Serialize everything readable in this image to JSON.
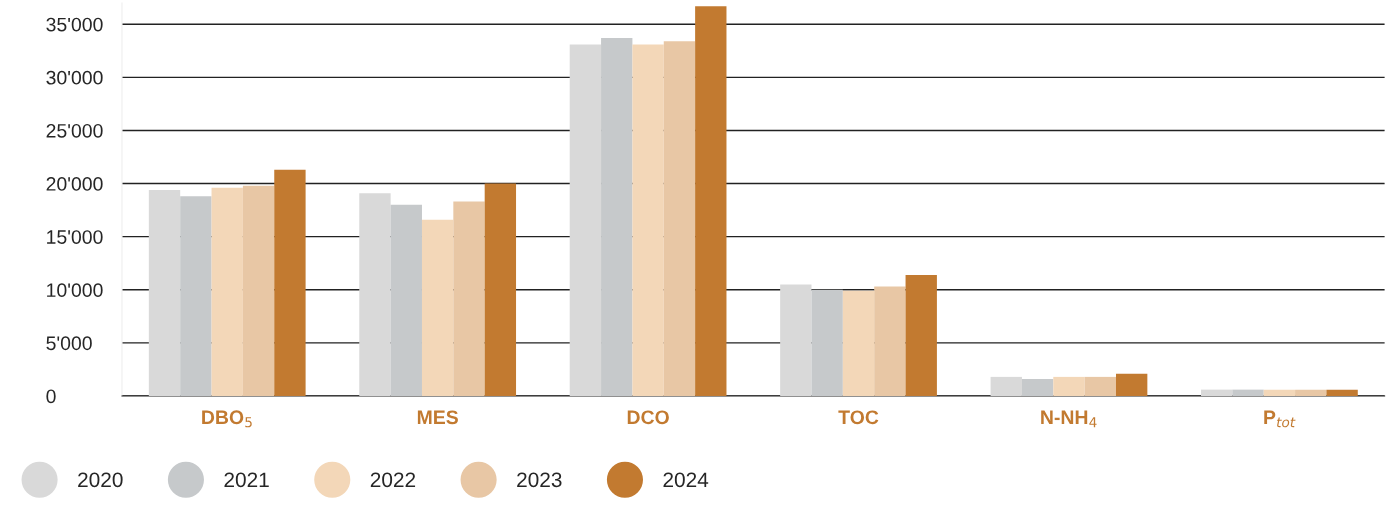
{
  "chart_data": {
    "type": "bar",
    "categories": [
      "DBO$_{5}$",
      "MES",
      "DCO",
      "TOC",
      "N-NH$_{4}$",
      "P$_{tot}$"
    ],
    "series": [
      {
        "name": "2020",
        "color": "#d9d9d9",
        "values": [
          19400,
          19100,
          33100,
          10500,
          1800,
          600
        ]
      },
      {
        "name": "2021",
        "color": "#c6c9cb",
        "values": [
          18800,
          18000,
          33700,
          10000,
          1600,
          600
        ]
      },
      {
        "name": "2022",
        "color": "#f3d7b8",
        "values": [
          19600,
          16600,
          33100,
          9900,
          1800,
          600
        ]
      },
      {
        "name": "2023",
        "color": "#e8c7a5",
        "values": [
          19800,
          18300,
          33400,
          10300,
          1800,
          600
        ]
      },
      {
        "name": "2024",
        "color": "#c27a30",
        "values": [
          21300,
          20000,
          36700,
          11400,
          2100,
          600
        ]
      }
    ],
    "ylim": [
      0,
      37000
    ],
    "yticks": [
      0,
      {
        "value": 5000,
        "label": "5'000"
      },
      {
        "value": 10000,
        "label": "10'000"
      },
      {
        "value": 15000,
        "label": "15'000"
      },
      {
        "value": 20000,
        "label": "20'000"
      },
      {
        "value": 25000,
        "label": "25'000"
      },
      {
        "value": 30000,
        "label": "30'000"
      },
      {
        "value": 35000,
        "label": "35'000"
      }
    ],
    "grid": "y",
    "legend": "bottom left",
    "marker": "circle"
  }
}
